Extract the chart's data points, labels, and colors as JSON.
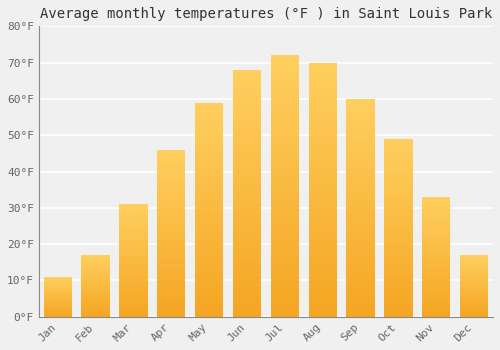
{
  "title": "Average monthly temperatures (°F ) in Saint Louis Park",
  "months": [
    "Jan",
    "Feb",
    "Mar",
    "Apr",
    "May",
    "Jun",
    "Jul",
    "Aug",
    "Sep",
    "Oct",
    "Nov",
    "Dec"
  ],
  "values": [
    11,
    17,
    31,
    46,
    59,
    68,
    72,
    70,
    60,
    49,
    33,
    17
  ],
  "bar_color_bottom": "#F5A623",
  "bar_color_top": "#FFD060",
  "ylim": [
    0,
    80
  ],
  "yticks": [
    0,
    10,
    20,
    30,
    40,
    50,
    60,
    70,
    80
  ],
  "ytick_labels": [
    "0°F",
    "10°F",
    "20°F",
    "30°F",
    "40°F",
    "50°F",
    "60°F",
    "70°F",
    "80°F"
  ],
  "bg_color": "#F0F0F0",
  "grid_color": "#FFFFFF",
  "title_fontsize": 10,
  "tick_fontsize": 8,
  "font_family": "monospace",
  "bar_width": 0.75
}
